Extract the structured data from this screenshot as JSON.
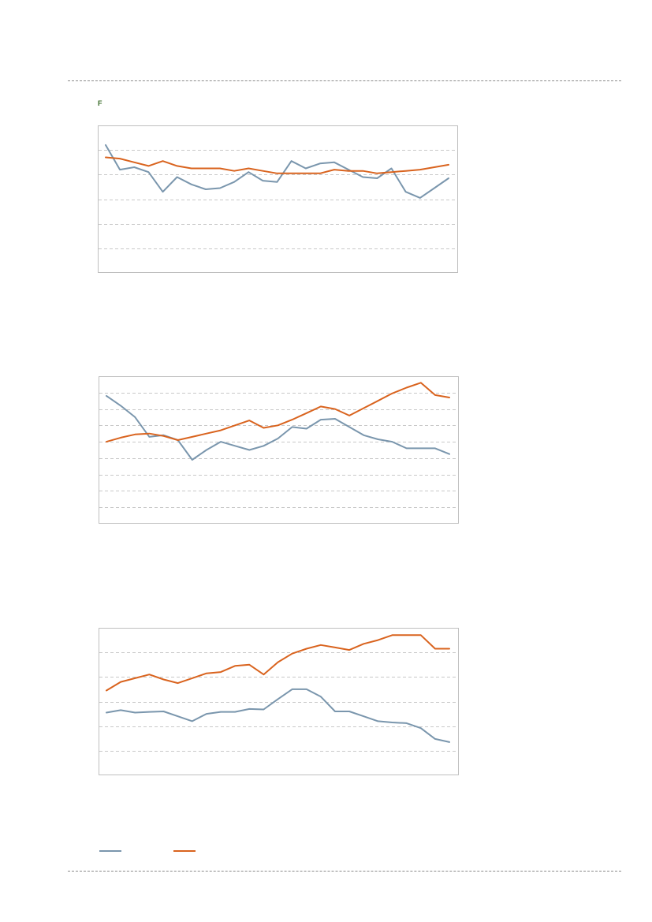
{
  "figure": {
    "label": "F",
    "colors": {
      "series_a": "#7a96ad",
      "series_b": "#d9631e",
      "grid": "#c8c8c8",
      "frame": "#bfbfbf",
      "label": "#3a6b2a"
    }
  },
  "legend": {
    "items": [
      {
        "name": "",
        "color": "#7a96ad"
      },
      {
        "name": "",
        "color": "#d9631e"
      }
    ]
  },
  "chart_data": [
    {
      "type": "line",
      "ylim": [
        0,
        6
      ],
      "yticks": [
        1,
        2,
        3,
        4,
        5
      ],
      "grid": true,
      "x": [
        1,
        2,
        3,
        4,
        5,
        6,
        7,
        8,
        9,
        10,
        11,
        12,
        13,
        14,
        15,
        16,
        17,
        18,
        19,
        20,
        21,
        22,
        23,
        24,
        25
      ],
      "series": [
        {
          "color": "#7a96ad",
          "values": [
            5.2,
            4.2,
            4.3,
            4.1,
            3.3,
            3.9,
            3.6,
            3.4,
            3.45,
            3.7,
            4.1,
            3.75,
            3.7,
            4.55,
            4.25,
            4.45,
            4.5,
            4.2,
            3.9,
            3.85,
            4.25,
            3.3,
            3.05,
            3.45,
            3.85
          ]
        },
        {
          "color": "#d9631e",
          "values": [
            4.7,
            4.65,
            4.5,
            4.35,
            4.55,
            4.35,
            4.25,
            4.25,
            4.25,
            4.15,
            4.25,
            4.15,
            4.05,
            4.05,
            4.05,
            4.05,
            4.2,
            4.15,
            4.15,
            4.05,
            4.1,
            4.15,
            4.2,
            4.3,
            4.4
          ]
        }
      ]
    },
    {
      "type": "line",
      "ylim": [
        0,
        9
      ],
      "yticks": [
        1,
        2,
        3,
        4,
        5,
        6,
        7,
        8
      ],
      "grid": true,
      "x": [
        1,
        2,
        3,
        4,
        5,
        6,
        7,
        8,
        9,
        10,
        11,
        12,
        13,
        14,
        15,
        16,
        17,
        18,
        19,
        20,
        21,
        22,
        23,
        24,
        25
      ],
      "series": [
        {
          "color": "#7a96ad",
          "values": [
            7.8,
            7.2,
            6.5,
            5.3,
            5.4,
            5.1,
            3.9,
            4.5,
            5.0,
            4.75,
            4.5,
            4.75,
            5.2,
            5.9,
            5.8,
            6.35,
            6.4,
            5.9,
            5.4,
            5.15,
            5.0,
            4.6,
            4.6,
            4.6,
            4.25
          ]
        },
        {
          "color": "#d9631e",
          "values": [
            5.0,
            5.25,
            5.45,
            5.5,
            5.35,
            5.1,
            5.3,
            5.5,
            5.7,
            6.0,
            6.3,
            5.85,
            6.0,
            6.35,
            6.75,
            7.15,
            7.0,
            6.6,
            7.05,
            7.5,
            7.95,
            8.3,
            8.6,
            7.85,
            7.7
          ]
        }
      ]
    },
    {
      "type": "line",
      "ylim": [
        0,
        6
      ],
      "yticks": [
        1,
        2,
        3,
        4,
        5
      ],
      "grid": true,
      "x": [
        1,
        2,
        3,
        4,
        5,
        6,
        7,
        8,
        9,
        10,
        11,
        12,
        13,
        14,
        15,
        16,
        17,
        18,
        19,
        20,
        21,
        22,
        23,
        24,
        25
      ],
      "series": [
        {
          "color": "#7a96ad",
          "values": [
            2.55,
            2.65,
            2.55,
            2.58,
            2.6,
            2.4,
            2.2,
            2.5,
            2.58,
            2.58,
            2.7,
            2.68,
            3.1,
            3.5,
            3.5,
            3.2,
            2.6,
            2.6,
            2.4,
            2.2,
            2.15,
            2.12,
            1.92,
            1.48,
            1.35
          ]
        },
        {
          "color": "#d9631e",
          "values": [
            3.45,
            3.8,
            3.95,
            4.1,
            3.9,
            3.75,
            3.95,
            4.15,
            4.2,
            4.45,
            4.5,
            4.1,
            4.6,
            4.95,
            5.15,
            5.3,
            5.2,
            5.1,
            5.35,
            5.5,
            5.7,
            5.7,
            5.7,
            5.15,
            5.15
          ]
        }
      ]
    }
  ]
}
